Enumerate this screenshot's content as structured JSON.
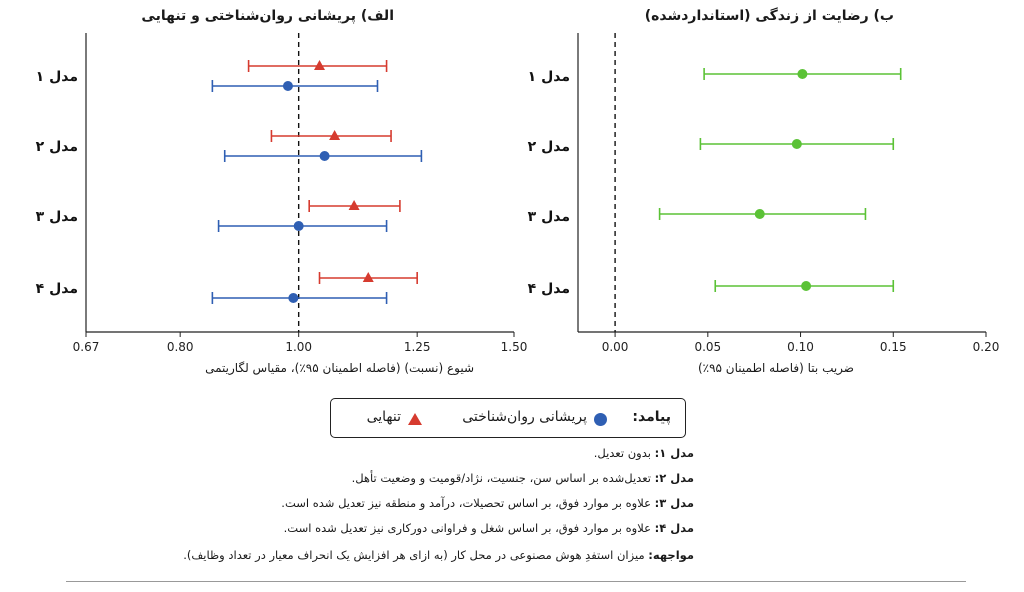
{
  "legend": {
    "title": "پیامد:",
    "items": [
      {
        "label": "پریشانی روان‌شناختی",
        "color": "#2f5fb3",
        "marker": "circle"
      },
      {
        "label": "تنهایی",
        "color": "#d63b2f",
        "marker": "triangle"
      }
    ]
  },
  "notes": [
    {
      "label": "مدل ۱:",
      "text": "بدون تعدیل."
    },
    {
      "label": "مدل ۲:",
      "text": "تعدیل‌شده بر اساس سن، جنسیت، نژاد/قومیت و وضعیت تأهل."
    },
    {
      "label": "مدل ۳:",
      "text": "علاوه بر موارد فوق، بر اساس تحصیلات، درآمد و منطقه نیز تعدیل شده است."
    },
    {
      "label": "مدل ۴:",
      "text": "علاوه بر موارد فوق، بر اساس شغل و فراوانی دورکاری نیز تعدیل شده است."
    },
    {
      "label": "مواجهه:",
      "text": "میزان استفدِ هوش مصنوعی در محل کار (به ازای هر افزایش یک انحراف معیار در تعداد وظایف)."
    }
  ],
  "chart_data": [
    {
      "type": "scatter",
      "title": "الف) پریشانی روان‌شناختی و تنهایی",
      "xlabel": "شیوع (نسبت) (فاصله اطمینان ۹۵٪)، مقیاس لگاریتمی",
      "ylabel": "",
      "x_scale": "log",
      "xlim": [
        0.67,
        1.5
      ],
      "xticks": [
        "0.67",
        "0.80",
        "1.00",
        "1.25",
        "1.50"
      ],
      "reference_line": 1.0,
      "categories": [
        "مدل ۱",
        "مدل ۲",
        "مدل ۳",
        "مدل ۴"
      ],
      "series": [
        {
          "name": "تنهایی",
          "color": "#d63b2f",
          "marker": "triangle",
          "estimates": [
            1.04,
            1.07,
            1.11,
            1.14
          ],
          "ci_low": [
            0.91,
            0.95,
            1.02,
            1.04
          ],
          "ci_high": [
            1.18,
            1.19,
            1.21,
            1.25
          ]
        },
        {
          "name": "پریشانی روان‌شناختی",
          "color": "#2f5fb3",
          "marker": "circle",
          "estimates": [
            0.98,
            1.05,
            1.0,
            0.99
          ],
          "ci_low": [
            0.85,
            0.87,
            0.86,
            0.85
          ],
          "ci_high": [
            1.16,
            1.26,
            1.18,
            1.18
          ]
        }
      ]
    },
    {
      "type": "scatter",
      "title": "ب) رضایت از زندگی (استانداردشده)",
      "xlabel": "ضریب بتا (فاصله اطمینان ۹۵٪)",
      "ylabel": "",
      "x_scale": "linear",
      "xlim": [
        -0.02,
        0.2
      ],
      "xticks": [
        "0.00",
        "0.05",
        "0.10",
        "0.15",
        "0.20"
      ],
      "reference_line": 0.0,
      "categories": [
        "مدل ۱",
        "مدل ۲",
        "مدل ۳",
        "مدل ۴"
      ],
      "series": [
        {
          "name": "رضایت از زندگی",
          "color": "#5bc236",
          "marker": "circle",
          "estimates": [
            0.101,
            0.098,
            0.078,
            0.103
          ],
          "ci_low": [
            0.048,
            0.046,
            0.024,
            0.054
          ],
          "ci_high": [
            0.154,
            0.15,
            0.135,
            0.15
          ]
        }
      ]
    }
  ]
}
